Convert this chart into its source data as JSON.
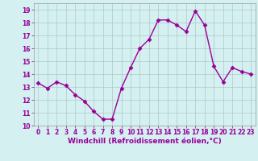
{
  "x": [
    0,
    1,
    2,
    3,
    4,
    5,
    6,
    7,
    8,
    9,
    10,
    11,
    12,
    13,
    14,
    15,
    16,
    17,
    18,
    19,
    20,
    21,
    22,
    23
  ],
  "y": [
    13.3,
    12.9,
    13.4,
    13.1,
    12.4,
    11.9,
    11.1,
    10.5,
    10.5,
    12.9,
    14.5,
    16.0,
    16.7,
    18.2,
    18.2,
    17.8,
    17.3,
    18.9,
    17.8,
    14.6,
    13.4,
    14.5,
    14.2,
    14.0
  ],
  "line_color": "#990099",
  "marker": "D",
  "markersize": 2.5,
  "linewidth": 1.0,
  "bg_color": "#d4f0f0",
  "grid_color": "#b0c8c8",
  "xlabel": "Windchill (Refroidissement éolien,°C)",
  "xlabel_color": "#990099",
  "xlabel_fontsize": 6.5,
  "tick_color": "#990099",
  "tick_fontsize": 5.5,
  "ylim": [
    10,
    19.5
  ],
  "yticks": [
    10,
    11,
    12,
    13,
    14,
    15,
    16,
    17,
    18,
    19
  ],
  "xlim": [
    -0.5,
    23.5
  ],
  "xticks": [
    0,
    1,
    2,
    3,
    4,
    5,
    6,
    7,
    8,
    9,
    10,
    11,
    12,
    13,
    14,
    15,
    16,
    17,
    18,
    19,
    20,
    21,
    22,
    23
  ]
}
